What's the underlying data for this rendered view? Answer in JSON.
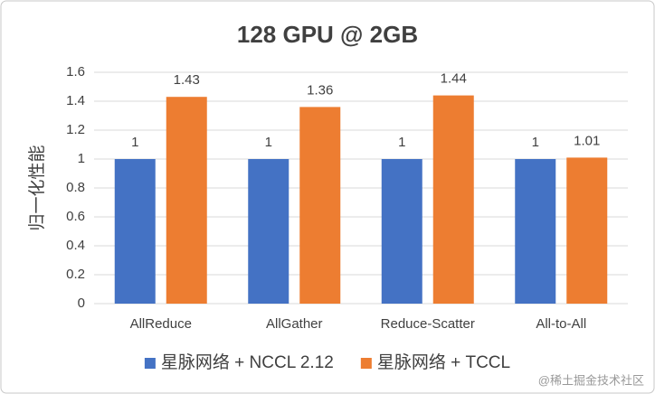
{
  "chart_data": {
    "type": "bar",
    "title": "128 GPU @ 2GB",
    "y_label": "归一化性能",
    "categories": [
      "AllReduce",
      "AllGather",
      "Reduce-Scatter",
      "All-to-All"
    ],
    "series": [
      {
        "name": "星脉网络 + NCCL 2.12",
        "color": "#4472c4",
        "values": [
          1,
          1,
          1,
          1
        ]
      },
      {
        "name": "星脉网络 + TCCL",
        "color": "#ed7d31",
        "values": [
          1.43,
          1.36,
          1.44,
          1.01
        ]
      }
    ],
    "ylim": [
      0,
      1.6
    ],
    "yticks": [
      0,
      0.2,
      0.4,
      0.6,
      0.8,
      1,
      1.2,
      1.4,
      1.6
    ],
    "grid": true,
    "legend": "bottom",
    "watermark": "@稀土掘金技术社区"
  }
}
